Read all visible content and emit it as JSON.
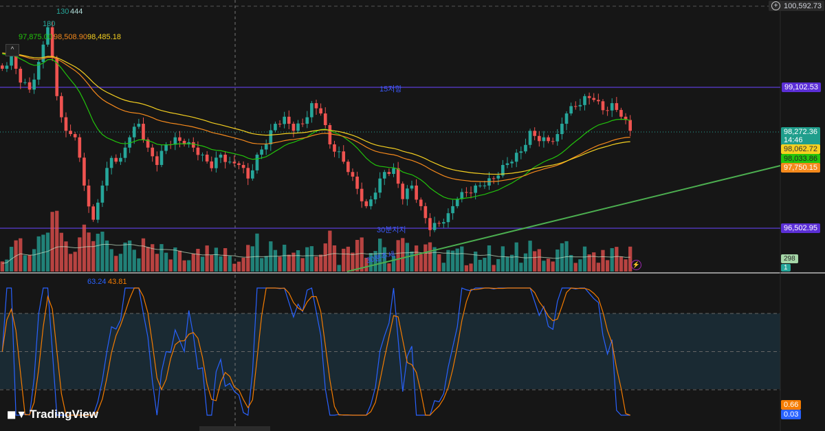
{
  "chart_data": {
    "type": "candlestick",
    "closes": [
      99445,
      99700,
      99190,
      99060,
      99570,
      100210,
      98940,
      98300,
      98180,
      97290,
      96660,
      97290,
      97800,
      97800,
      98180,
      98430,
      97990,
      97670,
      98050,
      98180,
      98050,
      97990,
      97860,
      97610,
      97860,
      97730,
      97670,
      97420,
      97860,
      98050,
      98430,
      98560,
      98300,
      98430,
      98810,
      98620,
      98050,
      97920,
      97540,
      97230,
      96910,
      97160,
      97540,
      97610,
      97040,
      97290,
      96910,
      96470,
      96590,
      96780,
      97040,
      97160,
      97290,
      97290,
      97420,
      97670,
      97730,
      97920,
      98300,
      98110,
      98110,
      98240,
      98620,
      98750,
      98940,
      98870,
      98680,
      98810,
      98560,
      98300
    ],
    "price_axis": {
      "top_label": "100,592.73",
      "current_price": "98,272.36",
      "countdown": "14:46",
      "ma_values": [
        {
          "value": "98,062.72",
          "color": "#f5d020"
        },
        {
          "value": "98,033.86",
          "color": "#22c40c"
        },
        {
          "value": "97,750.15",
          "color": "#f5891c"
        }
      ],
      "resistance": "99,102.53",
      "support": "96,502.95"
    },
    "levels": [
      {
        "price": 99102.53,
        "label": "15저항",
        "color": "#5b3ed6"
      },
      {
        "price": 96502.95,
        "label": "30분지지",
        "color": "#5b3ed6"
      }
    ],
    "trendline_label": "30분추세",
    "legend_top": {
      "vol1": "130",
      "vol2": "444",
      "vol3": "130"
    },
    "ma_legend": [
      {
        "value": "97,875.00",
        "color": "#22c40c"
      },
      {
        "value": "98,508.90",
        "color": "#f5891c"
      },
      {
        "value": "98,485.18",
        "color": "#f5d020"
      }
    ],
    "volume": {
      "ma_label": "298",
      "last_label": "1"
    },
    "stochastic": {
      "k_legend": "63.24",
      "d_legend": "43.81",
      "k_last": "0.03",
      "d_last": "0.66",
      "bands": [
        80,
        50,
        20
      ],
      "ylim": [
        0,
        100
      ]
    },
    "colors": {
      "up": "#26a69a",
      "down": "#ef5350",
      "k": "#2962ff",
      "d": "#f57c00"
    }
  },
  "brand": "TradingView"
}
